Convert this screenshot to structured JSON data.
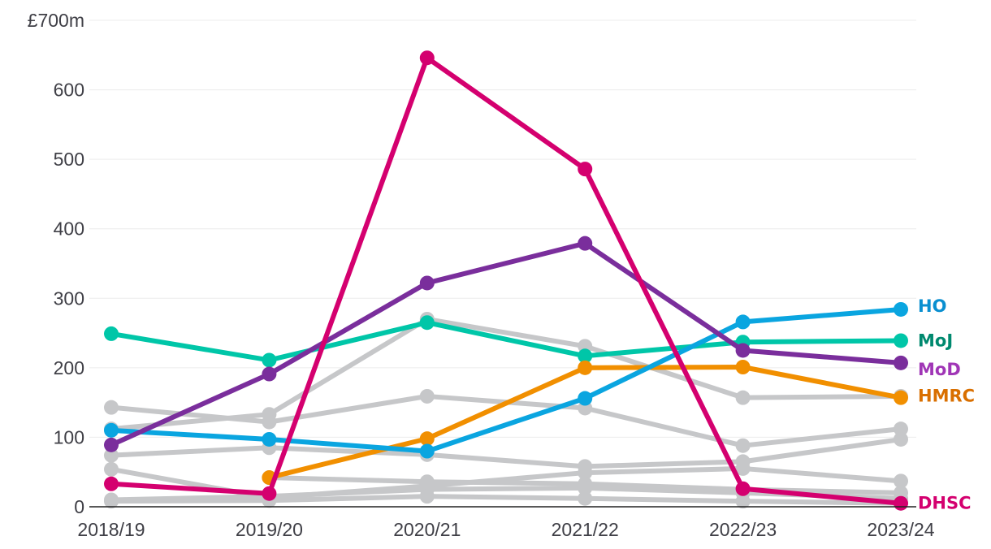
{
  "chart_data": {
    "type": "line",
    "title": "",
    "xlabel": "",
    "ylabel": "",
    "categories": [
      "2018/19",
      "2019/20",
      "2020/21",
      "2021/22",
      "2022/23",
      "2023/24"
    ],
    "ylim": [
      0,
      700
    ],
    "yticks": [
      0,
      100,
      200,
      300,
      400,
      500,
      600,
      700
    ],
    "ytick_labels": [
      "0",
      "100",
      "200",
      "300",
      "400",
      "500",
      "600",
      "£700m"
    ],
    "grid": true,
    "grey_series": [
      {
        "color": "#c6c7c9",
        "values": [
          112,
          133,
          270,
          231,
          157,
          159
        ]
      },
      {
        "color": "#c6c7c9",
        "values": [
          143,
          122,
          159,
          142,
          88,
          112
        ]
      },
      {
        "color": "#c6c7c9",
        "values": [
          74,
          85,
          75,
          58,
          65,
          97
        ]
      },
      {
        "color": "#c6c7c9",
        "values": [
          54,
          13,
          30,
          49,
          55,
          37
        ]
      },
      {
        "color": "#c6c7c9",
        "values": [
          null,
          42,
          36,
          33,
          25,
          20
        ]
      },
      {
        "color": "#c6c7c9",
        "values": [
          10,
          15,
          25,
          27,
          20,
          12
        ]
      },
      {
        "color": "#c6c7c9",
        "values": [
          8,
          9,
          15,
          12,
          8,
          5
        ]
      }
    ],
    "series": [
      {
        "name": "MoJ",
        "color": "#00c6a8",
        "label_color": "#00896f",
        "values": [
          249,
          211,
          265,
          217,
          237,
          239
        ]
      },
      {
        "name": "HMRC",
        "color": "#f18f00",
        "label_color": "#d96f00",
        "values": [
          null,
          42,
          98,
          200,
          201,
          157
        ]
      },
      {
        "name": "HO",
        "color": "#0aa5e0",
        "label_color": "#0a8fd0",
        "values": [
          110,
          97,
          80,
          156,
          266,
          284
        ]
      },
      {
        "name": "MoD",
        "color": "#7a2e9c",
        "label_color": "#a036b6",
        "values": [
          89,
          191,
          322,
          379,
          225,
          207
        ]
      },
      {
        "name": "DHSC",
        "color": "#d4006f",
        "label_color": "#d4006f",
        "values": [
          33,
          19,
          646,
          486,
          26,
          5
        ]
      }
    ]
  }
}
